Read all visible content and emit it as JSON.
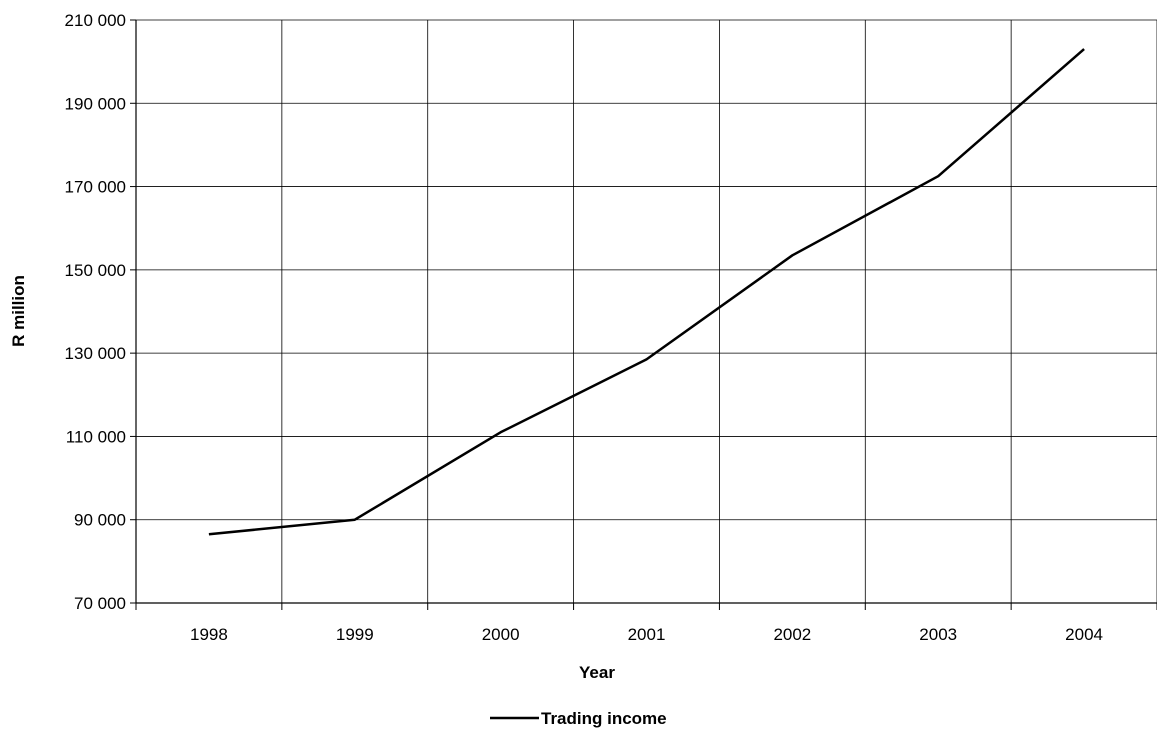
{
  "chart_data": {
    "type": "line",
    "title": "",
    "xlabel": "Year",
    "ylabel": "R million",
    "categories": [
      "1998",
      "1999",
      "2000",
      "2001",
      "2002",
      "2003",
      "2004"
    ],
    "ylim": [
      70000,
      210000
    ],
    "yticks": [
      70000,
      90000,
      110000,
      130000,
      150000,
      170000,
      190000,
      210000
    ],
    "ytick_labels": [
      "70 000",
      "90 000",
      "110 000",
      "130 000",
      "150 000",
      "170 000",
      "190 000",
      "210 000"
    ],
    "grid": true,
    "legend_position": "bottom-center",
    "series": [
      {
        "name": "Trading income",
        "color": "#000000",
        "values": [
          86500,
          90000,
          111000,
          128500,
          153500,
          172500,
          203000
        ]
      }
    ]
  }
}
